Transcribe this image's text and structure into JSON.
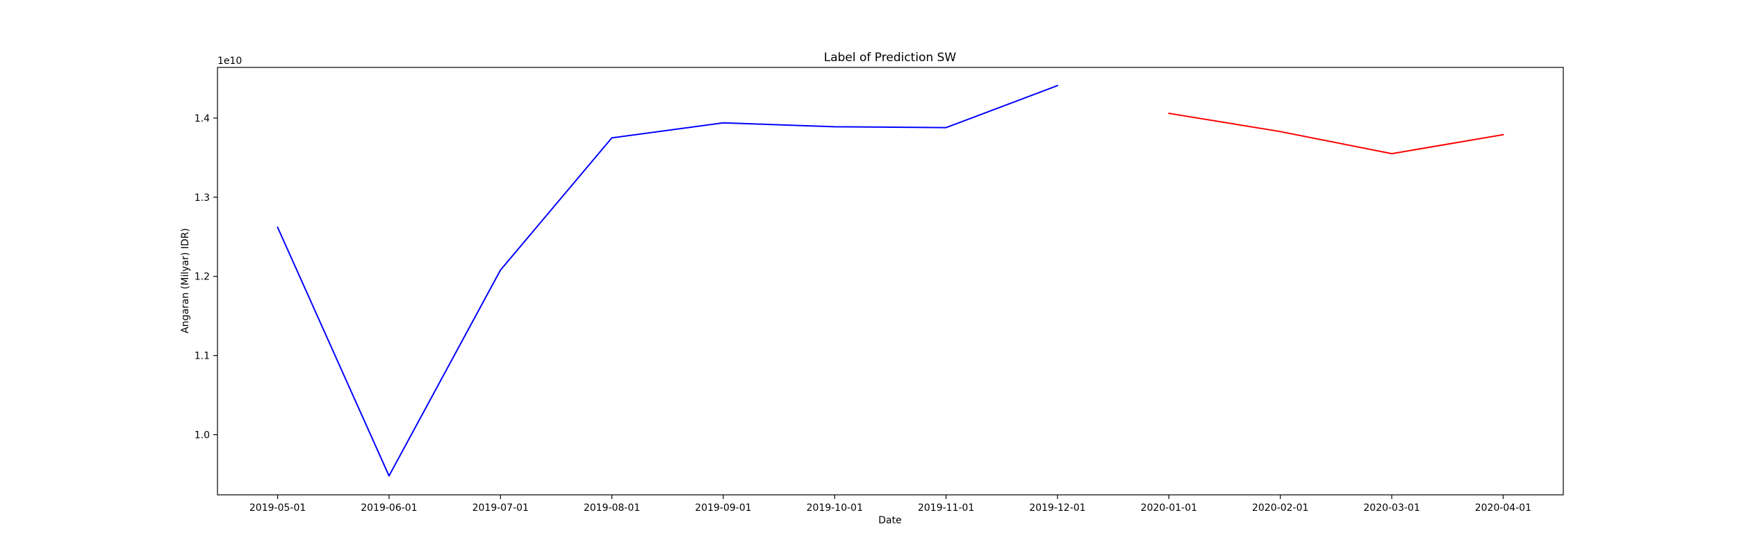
{
  "chart_data": {
    "type": "line",
    "title": "Label of Prediction SW",
    "xlabel": "Date",
    "ylabel": "Angaran (Milyar) IDR)",
    "y_offset_label": "1e10",
    "y_scale": 10000000000,
    "x_categories": [
      "2019-05-01",
      "2019-06-01",
      "2019-07-01",
      "2019-08-01",
      "2019-09-01",
      "2019-10-01",
      "2019-11-01",
      "2019-12-01",
      "2020-01-01",
      "2020-02-01",
      "2020-03-01",
      "2020-04-01"
    ],
    "xlim": [
      -0.54,
      11.54
    ],
    "ylim": [
      0.924,
      1.464
    ],
    "yticks": [
      1.0,
      1.1,
      1.2,
      1.3,
      1.4
    ],
    "ytick_labels": [
      "1.0",
      "1.1",
      "1.2",
      "1.3",
      "1.4"
    ],
    "series": [
      {
        "name": "Actual",
        "color": "#0000ff",
        "x_index": [
          0,
          1,
          2,
          3,
          4,
          5,
          6,
          7
        ],
        "values": [
          1.262,
          0.948,
          1.208,
          1.375,
          1.394,
          1.389,
          1.388,
          1.441
        ]
      },
      {
        "name": "Prediction",
        "color": "#ff0000",
        "x_index": [
          8,
          9,
          10,
          11
        ],
        "values": [
          1.406,
          1.383,
          1.355,
          1.379
        ]
      }
    ],
    "grid": false,
    "legend": "none"
  }
}
